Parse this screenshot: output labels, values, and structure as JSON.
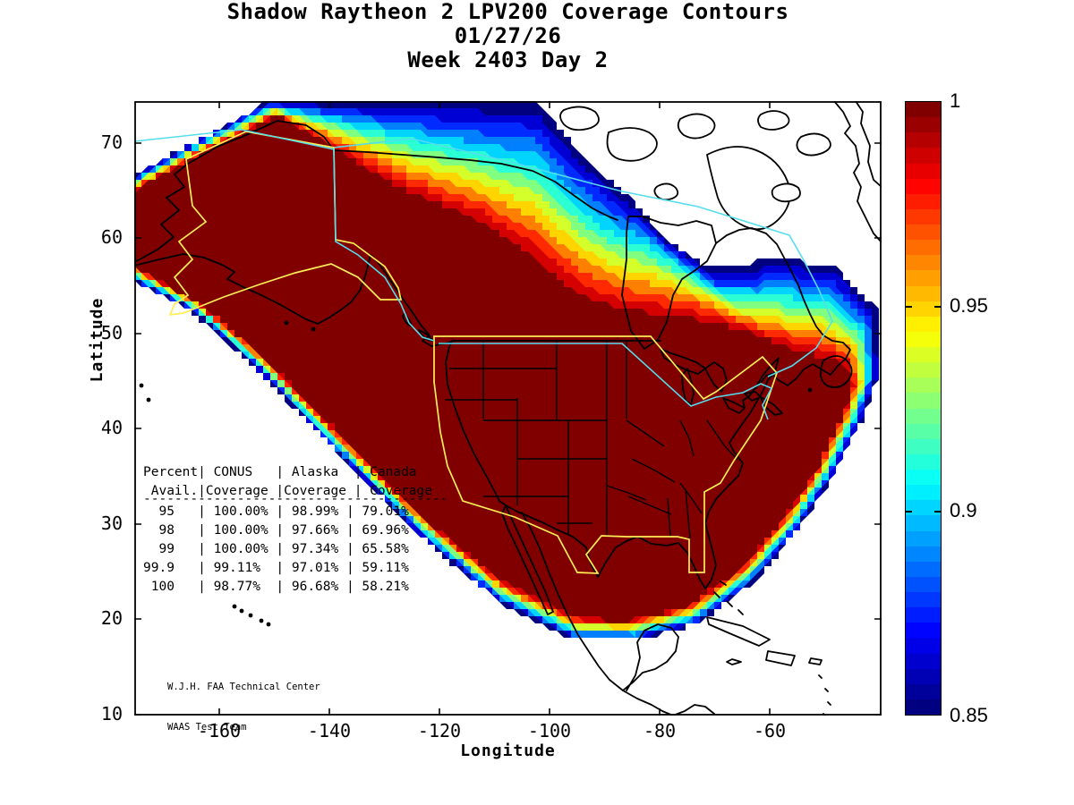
{
  "figure": {
    "title_line1": "Shadow Raytheon 2 LPV200 Coverage Contours",
    "title_line2": "01/27/26",
    "title_line3": "Week 2403 Day 2"
  },
  "axes": {
    "xlabel": "Longitude",
    "ylabel": "Latitude",
    "x_tick_labels": [
      "-160",
      "-140",
      "-120",
      "-100",
      "-80",
      "-60"
    ],
    "y_tick_labels": [
      "70",
      "60",
      "50",
      "40",
      "30",
      "20",
      "10"
    ]
  },
  "colorbar": {
    "tick_labels": [
      "1",
      "0.95",
      "0.9",
      "0.85"
    ],
    "max": 1.0,
    "min": 0.85,
    "colormap": "jet"
  },
  "coverage_table": {
    "header_line1": "Percent| CONUS   | Alaska  | Canada",
    "header_line2": " Avail.|Coverage |Coverage | Coverage",
    "separator": "---------------------------------------",
    "row_lines": [
      "  95   | 100.00% | 98.99% | 79.01%",
      "  98   | 100.00% | 97.66% | 69.96%",
      "  99   | 100.00% | 97.34% | 65.58%",
      "99.9   | 99.11%  | 97.01% | 59.11%",
      " 100   | 98.77%  | 96.68% | 58.21%"
    ]
  },
  "credit": {
    "line1": "W.J.H. FAA Technical Center",
    "line2": "WAAS Test Team"
  },
  "colors": {
    "core_red": "#800000",
    "outer_blue": "#000080",
    "conus_alaska_boundary_yellow": "#ffee55",
    "canada_boundary_cyan": "#55ddee",
    "coastline_black": "#000000",
    "background": "#ffffff"
  },
  "chart_data": {
    "type": "heatmap",
    "title": "Shadow Raytheon 2 LPV200 Coverage Contours",
    "subtitle": [
      "01/27/26",
      "Week 2403 Day 2"
    ],
    "xlabel": "Longitude",
    "ylabel": "Latitude",
    "xlim": [
      -175,
      -40
    ],
    "ylim": [
      10,
      74.5
    ],
    "x_ticks": [
      -160,
      -140,
      -120,
      -100,
      -80,
      -60
    ],
    "y_ticks": [
      70,
      60,
      50,
      40,
      30,
      20,
      10
    ],
    "colorbar": {
      "range": [
        0.85,
        1.0
      ],
      "labeled_values": [
        1,
        0.95,
        0.9,
        0.85
      ],
      "colormap": "jet",
      "orientation": "vertical",
      "position": "right"
    },
    "description": "LPV200 coverage availability contours over North America; dark red core (availability 1.0) covering CONUS, Alaska, Canada interior, rainbow fringe down to 0.85 (dark blue) along Arctic northeast, Atlantic east coast, Gulf/Caribbean south and Pacific southwest edges; service-area boundaries for CONUS/Alaska (yellow) and Canada (cyan) overlaid on black coastlines and state borders",
    "availability_table": {
      "columns": [
        "Percent Avail.",
        "CONUS Coverage",
        "Alaska Coverage",
        "Canada Coverage"
      ],
      "rows": [
        [
          "95",
          "100.00%",
          "98.99%",
          "79.01%"
        ],
        [
          "98",
          "100.00%",
          "97.66%",
          "69.96%"
        ],
        [
          "99",
          "100.00%",
          "97.34%",
          "65.58%"
        ],
        [
          "99.9",
          "99.11%",
          "97.01%",
          "59.11%"
        ],
        [
          "100",
          "98.77%",
          "96.68%",
          "58.21%"
        ]
      ]
    },
    "annotations": [
      "W.J.H. FAA Technical Center",
      "WAAS Test Team"
    ]
  }
}
